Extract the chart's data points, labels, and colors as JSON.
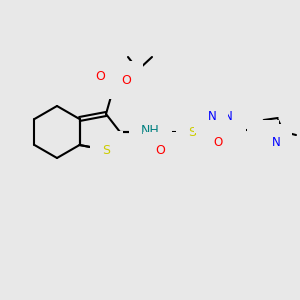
{
  "background_color": "#e8e8e8",
  "atom_colors": {
    "C": "#000000",
    "N": "#0000ff",
    "O": "#ff0000",
    "S": "#cccc00",
    "H": "#008080"
  },
  "bond_color": "#000000",
  "line_width": 1.5,
  "font_size": 9
}
